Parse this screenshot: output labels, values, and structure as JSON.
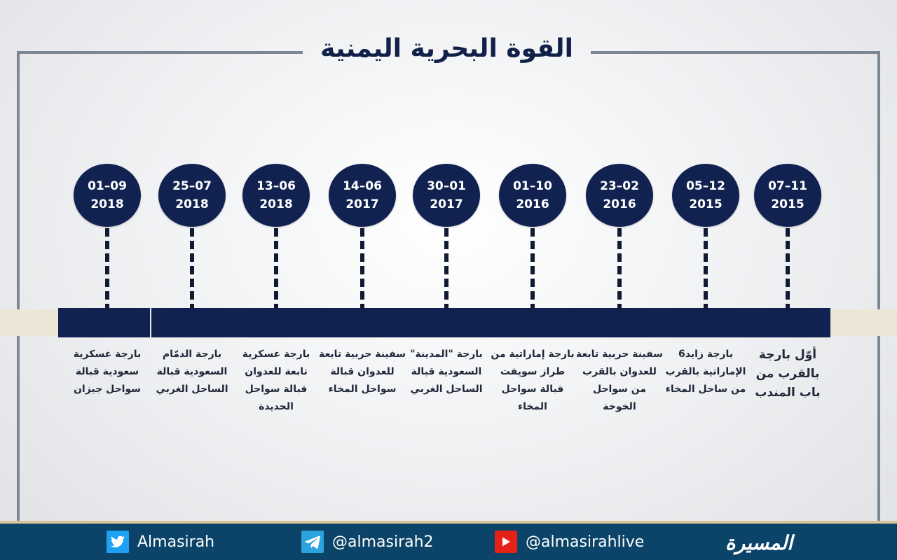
{
  "title": "القوة البحرية اليمنية",
  "events": [
    {
      "date": "01–09",
      "year": "2018",
      "desc": "بارجة عسكرية سعودية قبالة سواحل جيزان"
    },
    {
      "date": "25–07",
      "year": "2018",
      "desc": "بارجة الدمّام السعودية قبالة الساحل الغربي"
    },
    {
      "date": "13–06",
      "year": "2018",
      "desc": "بارجة عسكرية تابعة للعدوان قبالة سواحل الحديدة"
    },
    {
      "date": "14–06",
      "year": "2017",
      "desc": "سفينة حربية تابعة للعدوان قبالة سواحل المخاء"
    },
    {
      "date": "30–01",
      "year": "2017",
      "desc": "بارجة \"المدينة\" السعودية قبالة الساحل الغربي"
    },
    {
      "date": "01–10",
      "year": "2016",
      "desc": "بارجة إماراتية من طراز سويفت قبالة سواحل المخاء"
    },
    {
      "date": "23–02",
      "year": "2016",
      "desc": "سفينة حربية تابعة للعدوان بالقرب من سواحل الخوخة"
    },
    {
      "date": "05–12",
      "year": "2015",
      "desc": "بارجة زايد6 الإماراتية بالقرب من ساحل المخاء"
    },
    {
      "date": "07–11",
      "year": "2015",
      "desc": "أوّل بارجة بالقرب من باب المندب"
    }
  ],
  "footer": {
    "twitter": "Almasirah",
    "telegram": "@almasirah2",
    "youtube": "@almasirahlive",
    "logo": "المسيرة",
    "twitter_icon": "twitter-icon",
    "telegram_icon": "telegram-icon",
    "youtube_icon": "youtube-icon"
  },
  "colors": {
    "navy": "#112250",
    "footer": "#0b4468",
    "frame": "#7c8793",
    "strip": "#ece6d6"
  }
}
